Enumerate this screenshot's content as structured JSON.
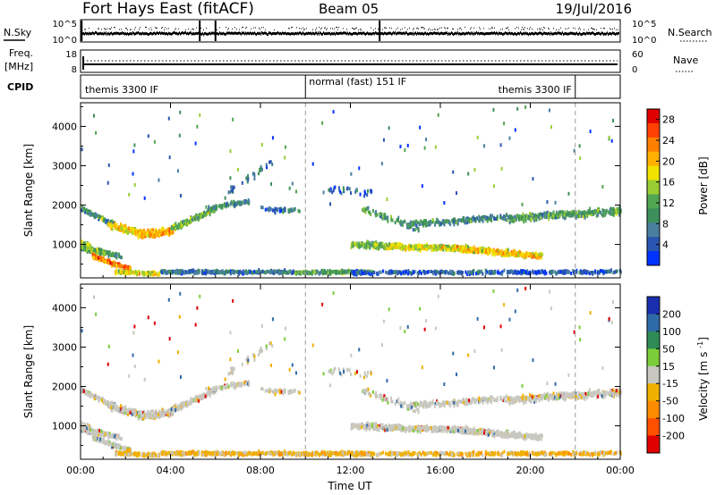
{
  "header": {
    "title": "Fort Hays East (fitACF)",
    "beam": "Beam 05",
    "date": "19/Jul/2016"
  },
  "nsky_panel": {
    "left_label": "N.Sky",
    "right_label": "N.Search",
    "left_ticks": [
      "10^5",
      "10^0"
    ],
    "right_ticks": [
      "10^5",
      "10^0"
    ]
  },
  "freq_panel": {
    "left_label_line1": "Freq.",
    "left_label_line2": "[MHz]",
    "right_label": "Nave",
    "left_ticks": [
      "18",
      "8"
    ],
    "right_ticks": [
      "60",
      "0"
    ]
  },
  "cpid_panel": {
    "label": "CPID",
    "segments": [
      {
        "text": "themis 3300 IF",
        "start_h": 0,
        "end_h": 10
      },
      {
        "text": "normal (fast) 151 IF",
        "start_h": 10,
        "end_h": 22
      },
      {
        "text": "themis 3300 IF",
        "start_h": 22,
        "end_h": 24
      }
    ]
  },
  "chart_data": [
    {
      "type": "heatmap",
      "name": "power-panel",
      "ylabel": "Slant Range [km]",
      "yticks": [
        "1000",
        "2000",
        "3000",
        "4000"
      ],
      "ylim": [
        150,
        4600
      ],
      "xlim_hours": [
        0,
        24
      ],
      "xticks": [
        "00:00",
        "04:00",
        "08:00",
        "12:00",
        "16:00",
        "20:00",
        "00:00"
      ],
      "colorbar": {
        "label": "Power [dB]",
        "ticks": [
          "4",
          "8",
          "12",
          "16",
          "20",
          "24",
          "28"
        ],
        "range": [
          0,
          30
        ],
        "colors": [
          "#0033ff",
          "#2a55b0",
          "#4a7fa0",
          "#3d8f5c",
          "#52a552",
          "#9acd32",
          "#f2e200",
          "#ffb000",
          "#ff8000",
          "#ff4000",
          "#e00000"
        ]
      }
    },
    {
      "type": "heatmap",
      "name": "velocity-panel",
      "ylabel": "Slant Range [km]",
      "yticks": [
        "1000",
        "2000",
        "3000",
        "4000"
      ],
      "ylim": [
        150,
        4600
      ],
      "xlim_hours": [
        0,
        24
      ],
      "xticks": [
        "00:00",
        "04:00",
        "08:00",
        "12:00",
        "16:00",
        "20:00",
        "00:00"
      ],
      "xlabel": "Time UT",
      "colorbar": {
        "label": "Velocity [m s^-1]",
        "ticks": [
          "200",
          "100",
          "50",
          "15",
          "-15",
          "-50",
          "-100",
          "-200"
        ],
        "colors": [
          "#1a2fb0",
          "#2f6aa8",
          "#2e8b57",
          "#7ccd3a",
          "#c8c8c0",
          "#f0b000",
          "#ff8c00",
          "#ff5000",
          "#e00000"
        ]
      }
    }
  ],
  "dashed_marker_hours": [
    10,
    22
  ]
}
